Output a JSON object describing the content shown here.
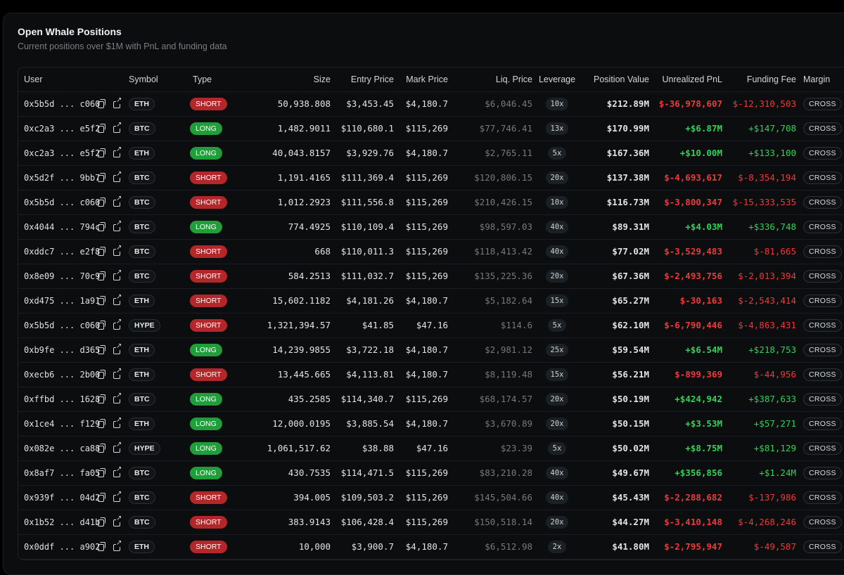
{
  "card": {
    "title": "Open Whale Positions",
    "subtitle": "Current positions over $1M with PnL and funding data"
  },
  "columns": [
    "User",
    "Symbol",
    "Type",
    "Size",
    "Entry Price",
    "Mark Price",
    "Liq. Price",
    "Leverage",
    "Position Value",
    "Unrealized PnL",
    "Funding Fee",
    "Margin"
  ],
  "icons": {
    "copy": "copy-icon",
    "external": "external-link-icon"
  },
  "colors": {
    "long": "#1f9e3a",
    "short": "#b3262a",
    "positive": "#35d05a",
    "negative": "#f0393b"
  },
  "rows": [
    {
      "user": "0x5b5d ... c060",
      "symbol": "ETH",
      "type": "SHORT",
      "size": "50,938.808",
      "entry": "$3,453.45",
      "mark": "$4,180.7",
      "liq": "$6,046.45",
      "leverage": "10x",
      "value": "$212.89M",
      "pnl": "$-36,978,607",
      "funding": "$-12,310,503",
      "margin": "CROSS"
    },
    {
      "user": "0xc2a3 ... e5f2",
      "symbol": "BTC",
      "type": "LONG",
      "size": "1,482.9011",
      "entry": "$110,680.1",
      "mark": "$115,269",
      "liq": "$77,746.41",
      "leverage": "13x",
      "value": "$170.99M",
      "pnl": "+$6.87M",
      "funding": "+$147,708",
      "margin": "CROSS"
    },
    {
      "user": "0xc2a3 ... e5f2",
      "symbol": "ETH",
      "type": "LONG",
      "size": "40,043.8157",
      "entry": "$3,929.76",
      "mark": "$4,180.7",
      "liq": "$2,765.11",
      "leverage": "5x",
      "value": "$167.36M",
      "pnl": "+$10.00M",
      "funding": "+$133,100",
      "margin": "CROSS"
    },
    {
      "user": "0x5d2f ... 9bb7",
      "symbol": "BTC",
      "type": "SHORT",
      "size": "1,191.4165",
      "entry": "$111,369.4",
      "mark": "$115,269",
      "liq": "$120,806.15",
      "leverage": "20x",
      "value": "$137.38M",
      "pnl": "$-4,693,617",
      "funding": "$-8,354,194",
      "margin": "CROSS"
    },
    {
      "user": "0x5b5d ... c060",
      "symbol": "BTC",
      "type": "SHORT",
      "size": "1,012.2923",
      "entry": "$111,556.8",
      "mark": "$115,269",
      "liq": "$210,426.15",
      "leverage": "10x",
      "value": "$116.73M",
      "pnl": "$-3,800,347",
      "funding": "$-15,333,535",
      "margin": "CROSS"
    },
    {
      "user": "0x4044 ... 794c",
      "symbol": "BTC",
      "type": "LONG",
      "size": "774.4925",
      "entry": "$110,109.4",
      "mark": "$115,269",
      "liq": "$98,597.03",
      "leverage": "40x",
      "value": "$89.31M",
      "pnl": "+$4.03M",
      "funding": "+$336,748",
      "margin": "CROSS"
    },
    {
      "user": "0xddc7 ... e2f8",
      "symbol": "BTC",
      "type": "SHORT",
      "size": "668",
      "entry": "$110,011.3",
      "mark": "$115,269",
      "liq": "$118,413.42",
      "leverage": "40x",
      "value": "$77.02M",
      "pnl": "$-3,529,483",
      "funding": "$-81,665",
      "margin": "CROSS"
    },
    {
      "user": "0x8e09 ... 70c9",
      "symbol": "BTC",
      "type": "SHORT",
      "size": "584.2513",
      "entry": "$111,032.7",
      "mark": "$115,269",
      "liq": "$135,225.36",
      "leverage": "20x",
      "value": "$67.36M",
      "pnl": "$-2,493,756",
      "funding": "$-2,013,394",
      "margin": "CROSS"
    },
    {
      "user": "0xd475 ... 1a91",
      "symbol": "ETH",
      "type": "SHORT",
      "size": "15,602.1182",
      "entry": "$4,181.26",
      "mark": "$4,180.7",
      "liq": "$5,182.64",
      "leverage": "15x",
      "value": "$65.27M",
      "pnl": "$-30,163",
      "funding": "$-2,543,414",
      "margin": "CROSS"
    },
    {
      "user": "0x5b5d ... c060",
      "symbol": "HYPE",
      "type": "SHORT",
      "size": "1,321,394.57",
      "entry": "$41.85",
      "mark": "$47.16",
      "liq": "$114.6",
      "leverage": "5x",
      "value": "$62.10M",
      "pnl": "$-6,790,446",
      "funding": "$-4,863,431",
      "margin": "CROSS"
    },
    {
      "user": "0xb9fe ... d365",
      "symbol": "ETH",
      "type": "LONG",
      "size": "14,239.9855",
      "entry": "$3,722.18",
      "mark": "$4,180.7",
      "liq": "$2,981.12",
      "leverage": "25x",
      "value": "$59.54M",
      "pnl": "+$6.54M",
      "funding": "+$218,753",
      "margin": "CROSS"
    },
    {
      "user": "0xecb6 ... 2b00",
      "symbol": "ETH",
      "type": "SHORT",
      "size": "13,445.665",
      "entry": "$4,113.81",
      "mark": "$4,180.7",
      "liq": "$8,119.48",
      "leverage": "15x",
      "value": "$56.21M",
      "pnl": "$-899,369",
      "funding": "$-44,956",
      "margin": "CROSS"
    },
    {
      "user": "0xffbd ... 1628",
      "symbol": "BTC",
      "type": "LONG",
      "size": "435.2585",
      "entry": "$114,340.7",
      "mark": "$115,269",
      "liq": "$68,174.57",
      "leverage": "20x",
      "value": "$50.19M",
      "pnl": "+$424,942",
      "funding": "+$387,633",
      "margin": "CROSS"
    },
    {
      "user": "0x1ce4 ... f129",
      "symbol": "ETH",
      "type": "LONG",
      "size": "12,000.0195",
      "entry": "$3,885.54",
      "mark": "$4,180.7",
      "liq": "$3,670.89",
      "leverage": "20x",
      "value": "$50.15M",
      "pnl": "+$3.53M",
      "funding": "+$57,271",
      "margin": "CROSS"
    },
    {
      "user": "0x082e ... ca88",
      "symbol": "HYPE",
      "type": "LONG",
      "size": "1,061,517.62",
      "entry": "$38.88",
      "mark": "$47.16",
      "liq": "$23.39",
      "leverage": "5x",
      "value": "$50.02M",
      "pnl": "+$8.75M",
      "funding": "+$81,129",
      "margin": "CROSS"
    },
    {
      "user": "0x8af7 ... fa05",
      "symbol": "BTC",
      "type": "LONG",
      "size": "430.7535",
      "entry": "$114,471.5",
      "mark": "$115,269",
      "liq": "$83,210.28",
      "leverage": "40x",
      "value": "$49.67M",
      "pnl": "+$356,856",
      "funding": "+$1.24M",
      "margin": "CROSS"
    },
    {
      "user": "0x939f ... 04d2",
      "symbol": "BTC",
      "type": "SHORT",
      "size": "394.005",
      "entry": "$109,503.2",
      "mark": "$115,269",
      "liq": "$145,504.66",
      "leverage": "40x",
      "value": "$45.43M",
      "pnl": "$-2,288,682",
      "funding": "$-137,986",
      "margin": "CROSS"
    },
    {
      "user": "0x1b52 ... d41b",
      "symbol": "BTC",
      "type": "SHORT",
      "size": "383.9143",
      "entry": "$106,428.4",
      "mark": "$115,269",
      "liq": "$150,518.14",
      "leverage": "20x",
      "value": "$44.27M",
      "pnl": "$-3,410,148",
      "funding": "$-4,268,246",
      "margin": "CROSS"
    },
    {
      "user": "0x0ddf ... a902",
      "symbol": "ETH",
      "type": "SHORT",
      "size": "10,000",
      "entry": "$3,900.7",
      "mark": "$4,180.7",
      "liq": "$6,512.98",
      "leverage": "2x",
      "value": "$41.80M",
      "pnl": "$-2,795,947",
      "funding": "$-49,587",
      "margin": "CROSS"
    }
  ]
}
